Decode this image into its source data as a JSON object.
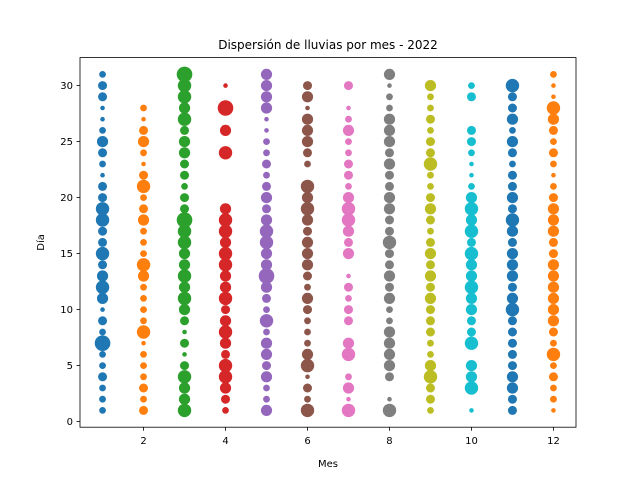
{
  "chart_data": {
    "type": "scatter",
    "title": "Dispersión de lluvias por mes - 2022",
    "xlabel": "Mes",
    "ylabel": "Día",
    "xlim": [
      0.45,
      12.55
    ],
    "ylim": [
      -0.5,
      32.5
    ],
    "xticks": [
      2,
      4,
      6,
      8,
      10,
      12
    ],
    "yticks": [
      0,
      5,
      10,
      15,
      20,
      25,
      30
    ],
    "grid": false,
    "legend": "none",
    "size_note": "marker size encodes relative rainfall amount (relative units, 0-3)",
    "series": [
      {
        "month": 1,
        "color": "#1f77b4",
        "x": [
          1,
          1,
          1,
          1,
          1,
          1,
          1,
          1,
          1,
          1,
          1,
          1,
          1,
          1,
          1,
          1,
          1,
          1,
          1,
          1,
          1,
          1,
          1,
          1,
          1,
          1,
          1,
          1,
          1,
          1,
          1
        ],
        "y": [
          1,
          2,
          3,
          4,
          5,
          6,
          7,
          8,
          9,
          10,
          11,
          12,
          13,
          14,
          15,
          16,
          17,
          18,
          19,
          20,
          21,
          22,
          23,
          24,
          25,
          26,
          27,
          28,
          29,
          30,
          31
        ],
        "size": [
          1,
          1,
          1,
          1.5,
          1,
          1,
          3,
          1,
          1.5,
          0.5,
          2,
          2.5,
          2,
          1.5,
          2.5,
          1.5,
          1.5,
          2.5,
          2.5,
          1.5,
          1.5,
          0.5,
          1,
          1.5,
          2,
          1,
          0.5,
          0.5,
          1.5,
          1.5,
          1
        ]
      },
      {
        "month": 2,
        "color": "#ff7f0e",
        "x": [
          2,
          2,
          2,
          2,
          2,
          2,
          2,
          2,
          2,
          2,
          2,
          2,
          2,
          2,
          2,
          2,
          2,
          2,
          2,
          2,
          2,
          2,
          2,
          2,
          2,
          2,
          2,
          2
        ],
        "y": [
          1,
          2,
          3,
          4,
          5,
          6,
          7,
          8,
          9,
          10,
          11,
          12,
          13,
          14,
          15,
          16,
          17,
          18,
          19,
          20,
          21,
          22,
          23,
          24,
          25,
          26,
          27,
          28
        ],
        "size": [
          1.5,
          1,
          1.5,
          1,
          1,
          1,
          0.5,
          2.5,
          1,
          1,
          1,
          1,
          2,
          2.5,
          1,
          1,
          1,
          2,
          1.5,
          1,
          2.5,
          1.5,
          0.5,
          1,
          2,
          1.5,
          0.5,
          1
        ]
      },
      {
        "month": 3,
        "color": "#2ca02c",
        "x": [
          3,
          3,
          3,
          3,
          3,
          3,
          3,
          3,
          3,
          3,
          3,
          3,
          3,
          3,
          3,
          3,
          3,
          3,
          3,
          3,
          3,
          3,
          3,
          3,
          3,
          3,
          3,
          3,
          3,
          3,
          3
        ],
        "y": [
          1,
          2,
          3,
          4,
          5,
          6,
          7,
          8,
          9,
          10,
          11,
          12,
          13,
          14,
          15,
          16,
          17,
          18,
          19,
          20,
          21,
          22,
          23,
          24,
          25,
          26,
          27,
          28,
          29,
          30,
          31
        ],
        "size": [
          2.5,
          2,
          2,
          2.5,
          1.5,
          0.5,
          1.5,
          0.5,
          1.5,
          2,
          2.5,
          2,
          2.5,
          2,
          2,
          2.5,
          2.5,
          3,
          1.5,
          1.5,
          1,
          1.5,
          1.5,
          2,
          2,
          1.5,
          2.5,
          2,
          2.5,
          2.5,
          3
        ]
      },
      {
        "month": 4,
        "color": "#d62728",
        "x": [
          4,
          4,
          4,
          4,
          4,
          4,
          4,
          4,
          4,
          4,
          4,
          4,
          4,
          4,
          4,
          4,
          4,
          4,
          4,
          4,
          4,
          4,
          4
        ],
        "y": [
          1,
          2,
          3,
          4,
          5,
          6,
          7,
          8,
          9,
          10,
          11,
          12,
          13,
          14,
          15,
          16,
          17,
          18,
          19,
          24,
          26,
          28,
          30
        ],
        "size": [
          1,
          1.5,
          2,
          2.5,
          2.5,
          1.5,
          2,
          2.5,
          2,
          1.5,
          2.5,
          2,
          2,
          2.5,
          2.5,
          2,
          2.5,
          2.5,
          2,
          2.5,
          2,
          3,
          0.5
        ]
      },
      {
        "month": 5,
        "color": "#9467bd",
        "x": [
          5,
          5,
          5,
          5,
          5,
          5,
          5,
          5,
          5,
          5,
          5,
          5,
          5,
          5,
          5,
          5,
          5,
          5,
          5,
          5,
          5,
          5,
          5,
          5,
          5,
          5,
          5,
          5,
          5,
          5,
          5
        ],
        "y": [
          1,
          2,
          3,
          4,
          5,
          6,
          7,
          8,
          9,
          10,
          11,
          12,
          13,
          14,
          15,
          16,
          17,
          18,
          19,
          20,
          21,
          22,
          23,
          24,
          25,
          26,
          27,
          28,
          29,
          30,
          31
        ],
        "size": [
          2,
          1,
          1,
          2,
          1.5,
          2,
          2,
          1,
          2.5,
          1,
          1.5,
          2,
          3,
          2,
          2,
          2.5,
          2.5,
          2,
          1.5,
          2,
          1.5,
          1,
          1.5,
          1,
          1,
          0.5,
          0.5,
          2,
          2,
          2,
          2
        ]
      },
      {
        "month": 6,
        "color": "#8c564b",
        "x": [
          6,
          6,
          6,
          6,
          6,
          6,
          6,
          6,
          6,
          6,
          6,
          6,
          6,
          6,
          6,
          6,
          6,
          6,
          6,
          6,
          6,
          6,
          6,
          6,
          6,
          6,
          6,
          6,
          6
        ],
        "y": [
          1,
          2,
          3,
          4,
          5,
          6,
          7,
          8,
          9,
          10,
          11,
          12,
          13,
          14,
          15,
          16,
          17,
          18,
          19,
          20,
          21,
          23,
          24,
          25,
          26,
          27,
          28,
          29,
          30
        ],
        "size": [
          2.5,
          1,
          1.5,
          0.5,
          2.5,
          2,
          1,
          1,
          1,
          1.5,
          2,
          1,
          1.5,
          2,
          2,
          2,
          1.5,
          2,
          2.5,
          2,
          2.5,
          1,
          1.5,
          2,
          2,
          2,
          0.5,
          2,
          1.5
        ]
      },
      {
        "month": 7,
        "color": "#e377c2",
        "x": [
          7,
          7,
          7,
          7,
          7,
          7,
          7,
          7,
          7,
          7,
          7,
          7,
          7,
          7,
          7,
          7,
          7,
          7,
          7,
          7,
          7,
          7,
          7,
          7,
          7,
          7
        ],
        "y": [
          1,
          2,
          3,
          4,
          6,
          7,
          9,
          10,
          11,
          12,
          13,
          15,
          16,
          17,
          18,
          19,
          20,
          21,
          22,
          23,
          24,
          25,
          26,
          27,
          28,
          30
        ],
        "size": [
          2.5,
          0.5,
          2,
          1,
          2.5,
          2,
          1.5,
          1.5,
          1,
          1.5,
          0.5,
          2,
          1.5,
          2,
          2.5,
          2.5,
          2,
          1,
          1.5,
          1.5,
          1,
          1,
          2,
          1,
          0.5,
          1.5
        ]
      },
      {
        "month": 8,
        "color": "#7f7f7f",
        "x": [
          8,
          8,
          8,
          8,
          8,
          8,
          8,
          8,
          8,
          8,
          8,
          8,
          8,
          8,
          8,
          8,
          8,
          8,
          8,
          8,
          8,
          8,
          8,
          8,
          8,
          8,
          8,
          8,
          8,
          8,
          8
        ],
        "y": [
          1,
          2,
          3,
          4,
          5,
          6,
          7,
          8,
          9,
          10,
          11,
          12,
          13,
          14,
          15,
          16,
          17,
          18,
          19,
          20,
          21,
          22,
          23,
          24,
          25,
          26,
          27,
          28,
          29,
          30,
          31
        ],
        "size": [
          2.5,
          0.5,
          0,
          1.5,
          2,
          2,
          2,
          2,
          1,
          1,
          2,
          1.5,
          2,
          1.5,
          1.5,
          2.5,
          1.5,
          1.5,
          2,
          2,
          1.5,
          1.5,
          2,
          1.5,
          2,
          2,
          2,
          1,
          1,
          0.5,
          2
        ]
      },
      {
        "month": 9,
        "color": "#bcbd22",
        "x": [
          9,
          9,
          9,
          9,
          9,
          9,
          9,
          9,
          9,
          9,
          9,
          9,
          9,
          9,
          9,
          9,
          9,
          9,
          9,
          9,
          9,
          9,
          9,
          9,
          9,
          9,
          9,
          9,
          9,
          9
        ],
        "y": [
          1,
          2,
          3,
          4,
          5,
          6,
          7,
          8,
          9,
          10,
          11,
          12,
          13,
          14,
          15,
          16,
          17,
          18,
          19,
          20,
          21,
          22,
          23,
          24,
          25,
          26,
          27,
          28,
          29,
          30
        ],
        "size": [
          1,
          1.5,
          1.5,
          2.5,
          2,
          1,
          1,
          1.5,
          1.5,
          1.5,
          2,
          1.5,
          2,
          1.5,
          2,
          1.5,
          1,
          1.5,
          2,
          1.5,
          1,
          1,
          2.5,
          1.5,
          1.5,
          1,
          1.5,
          1,
          1,
          2
        ]
      },
      {
        "month": 10,
        "color": "#17becf",
        "x": [
          10,
          10,
          10,
          10,
          10,
          10,
          10,
          10,
          10,
          10,
          10,
          10,
          10,
          10,
          10,
          10,
          10,
          10,
          10,
          10,
          10,
          10,
          10,
          10,
          10,
          10
        ],
        "y": [
          1,
          3,
          4,
          5,
          7,
          8,
          9,
          10,
          11,
          12,
          13,
          14,
          15,
          16,
          17,
          18,
          19,
          20,
          21,
          22,
          23,
          24,
          25,
          26,
          29,
          30
        ],
        "size": [
          0.5,
          2.5,
          2,
          2,
          2.5,
          1.5,
          1.5,
          2,
          2,
          2.5,
          2,
          2,
          2.5,
          1.5,
          2.5,
          2,
          2.5,
          2,
          1,
          0.5,
          0.5,
          1,
          1.5,
          1.5,
          1.5,
          1
        ]
      },
      {
        "month": 11,
        "color": "#1f77b4",
        "x": [
          11,
          11,
          11,
          11,
          11,
          11,
          11,
          11,
          11,
          11,
          11,
          11,
          11,
          11,
          11,
          11,
          11,
          11,
          11,
          11,
          11,
          11,
          11,
          11,
          11,
          11,
          11,
          11,
          11,
          11
        ],
        "y": [
          1,
          2,
          3,
          4,
          5,
          6,
          7,
          8,
          9,
          10,
          11,
          12,
          13,
          14,
          15,
          16,
          17,
          18,
          19,
          20,
          21,
          22,
          23,
          24,
          25,
          26,
          27,
          28,
          29,
          30
        ],
        "size": [
          1.5,
          1.5,
          2,
          2,
          1.5,
          1.5,
          1.5,
          1.5,
          1.5,
          2.5,
          2,
          1.5,
          2,
          2,
          2,
          1.5,
          2,
          2.5,
          1.5,
          2,
          1.5,
          1.5,
          1,
          1.5,
          2,
          1,
          2,
          1.5,
          1.5,
          2.5
        ]
      },
      {
        "month": 12,
        "color": "#ff7f0e",
        "x": [
          12,
          12,
          12,
          12,
          12,
          12,
          12,
          12,
          12,
          12,
          12,
          12,
          12,
          12,
          12,
          12,
          12,
          12,
          12,
          12,
          12,
          12,
          12,
          12,
          12,
          12,
          12,
          12,
          12,
          12,
          12
        ],
        "y": [
          1,
          2,
          3,
          4,
          5,
          6,
          7,
          8,
          9,
          10,
          11,
          12,
          13,
          14,
          15,
          16,
          17,
          18,
          19,
          20,
          21,
          22,
          23,
          24,
          25,
          26,
          27,
          28,
          29,
          30,
          31
        ],
        "size": [
          0.5,
          1,
          1,
          1.5,
          1,
          2.5,
          1,
          1.5,
          2,
          2,
          2,
          2,
          2,
          2,
          1.5,
          1.5,
          2,
          2,
          2,
          1.5,
          1,
          0.5,
          1,
          1.5,
          1,
          1.5,
          2,
          2.5,
          0.5,
          0.5,
          1
        ]
      }
    ]
  }
}
